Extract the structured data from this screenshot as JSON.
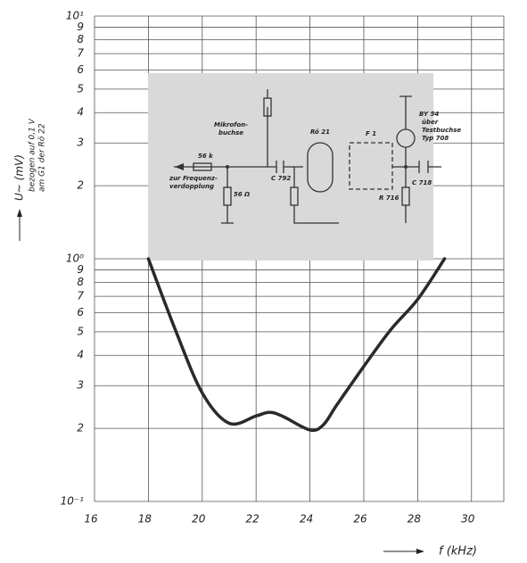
{
  "chart_data": {
    "type": "line",
    "y_label": [
      "U~ (mV)",
      "bezogen auf 0,1 V",
      "am G1 der Rö 22"
    ],
    "x_label": "f (kHz)",
    "x": [
      18,
      19,
      20,
      21,
      22,
      22.5,
      23,
      24,
      24.5,
      25,
      26,
      27,
      28,
      29
    ],
    "series": [
      {
        "color": "#2a2a2a",
        "values": [
          1.0,
          0.51,
          0.28,
          0.21,
          0.225,
          0.233,
          0.224,
          0.197,
          0.207,
          0.25,
          0.36,
          0.51,
          0.68,
          1.0
        ]
      }
    ],
    "xlim": [
      16,
      31.2
    ],
    "xticks": [
      16,
      18,
      20,
      22,
      24,
      26,
      28,
      30
    ],
    "ylim": [
      0.1,
      10
    ],
    "log_y": true,
    "yticks": [
      {
        "value": 0.1,
        "label": "10⁻¹"
      },
      {
        "value": 0.2,
        "label": "2"
      },
      {
        "value": 0.3,
        "label": "3"
      },
      {
        "value": 0.4,
        "label": "4"
      },
      {
        "value": 0.5,
        "label": "5"
      },
      {
        "value": 0.6,
        "label": "6"
      },
      {
        "value": 0.7,
        "label": "7"
      },
      {
        "value": 0.8,
        "label": "8"
      },
      {
        "value": 0.9,
        "label": "9"
      },
      {
        "value": 1,
        "label": "10⁰"
      },
      2,
      3,
      4,
      5,
      6,
      7,
      8,
      9,
      {
        "value": 10,
        "label": "10¹"
      }
    ],
    "grid": true,
    "inset_labels": [
      "56 k",
      "Mikrofon-",
      "buchse",
      "zur Frequenz-",
      "verdopplung",
      "56 Ω",
      "C 792",
      "Rö 21",
      "F 1",
      "BY 54",
      "über",
      "Testbuchse",
      "Typ 708",
      "C 718",
      "R 716"
    ]
  }
}
